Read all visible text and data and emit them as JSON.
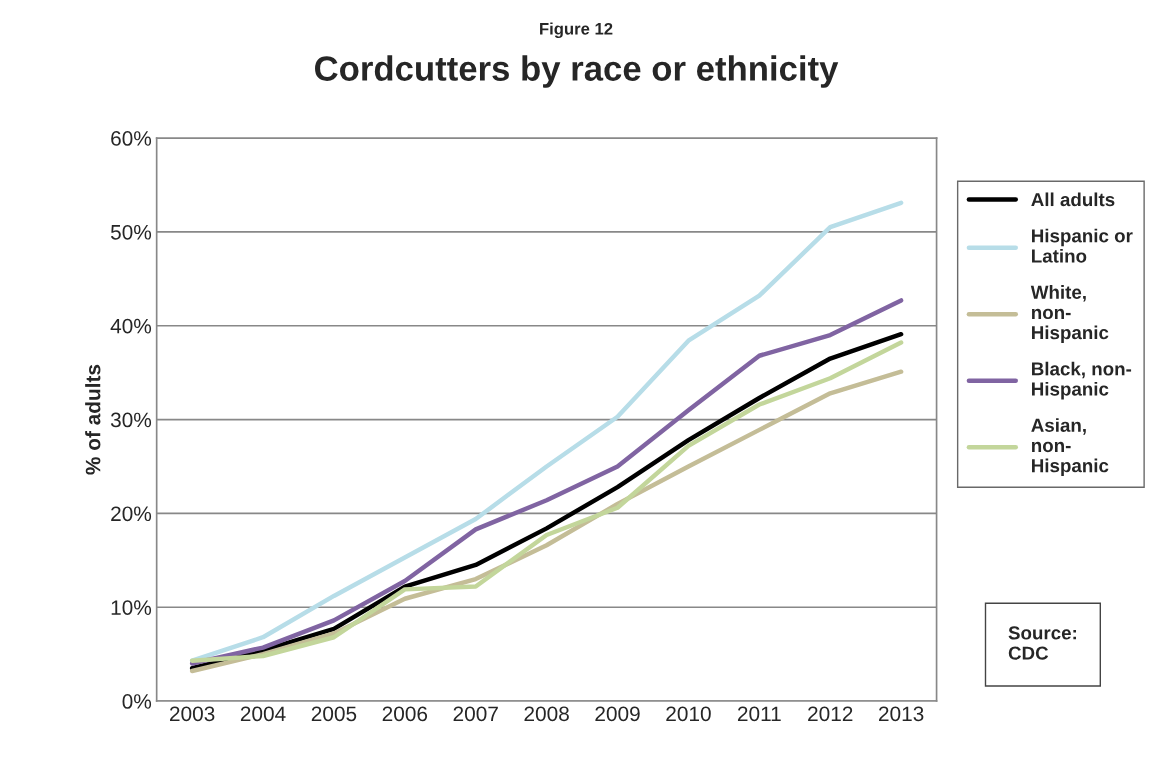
{
  "chart_data": {
    "type": "line",
    "subtitle": "Figure 12",
    "title": "Cordcutters by race or ethnicity",
    "ylabel": "% of adults",
    "categories": [
      "2003",
      "2004",
      "2005",
      "2006",
      "2007",
      "2008",
      "2009",
      "2010",
      "2011",
      "2012",
      "2013"
    ],
    "series": [
      {
        "name": "All adults",
        "color": "#000000",
        "values": [
          3.5,
          5.4,
          7.7,
          12.2,
          14.5,
          18.4,
          22.8,
          27.8,
          32.3,
          36.5,
          39.1
        ]
      },
      {
        "name": "Hispanic or\nLatino",
        "color": "#b7dde8",
        "values": [
          4.3,
          6.8,
          11.2,
          15.3,
          19.4,
          25.0,
          30.3,
          38.4,
          43.2,
          50.5,
          53.1
        ]
      },
      {
        "name": "White,\nnon-\nHispanic",
        "color": "#c4bd97",
        "values": [
          3.2,
          5.0,
          7.2,
          10.9,
          13.0,
          16.6,
          21.0,
          25.0,
          28.9,
          32.8,
          35.1
        ]
      },
      {
        "name": "Black, non-\nHispanic",
        "color": "#8064a2",
        "values": [
          4.0,
          5.7,
          8.6,
          12.8,
          18.3,
          21.4,
          25.0,
          31.0,
          36.8,
          39.0,
          42.7
        ]
      },
      {
        "name": "Asian,\nnon-\nHispanic",
        "color": "#c3d69b",
        "values": [
          4.3,
          4.8,
          6.8,
          11.9,
          12.2,
          17.7,
          20.6,
          27.2,
          31.6,
          34.4,
          38.2
        ]
      }
    ],
    "ylim": [
      0,
      60
    ],
    "yticks": [
      {
        "value": 0,
        "label": "0%"
      },
      {
        "value": 10,
        "label": "10%"
      },
      {
        "value": 20,
        "label": "20%"
      },
      {
        "value": 30,
        "label": "30%"
      },
      {
        "value": 40,
        "label": "40%"
      },
      {
        "value": 50,
        "label": "50%"
      },
      {
        "value": 60,
        "label": "60%"
      }
    ],
    "grid": "y",
    "legend": "right",
    "marker": "none",
    "line_style": "solid",
    "annotations": [
      "Source:\nCDC"
    ]
  }
}
